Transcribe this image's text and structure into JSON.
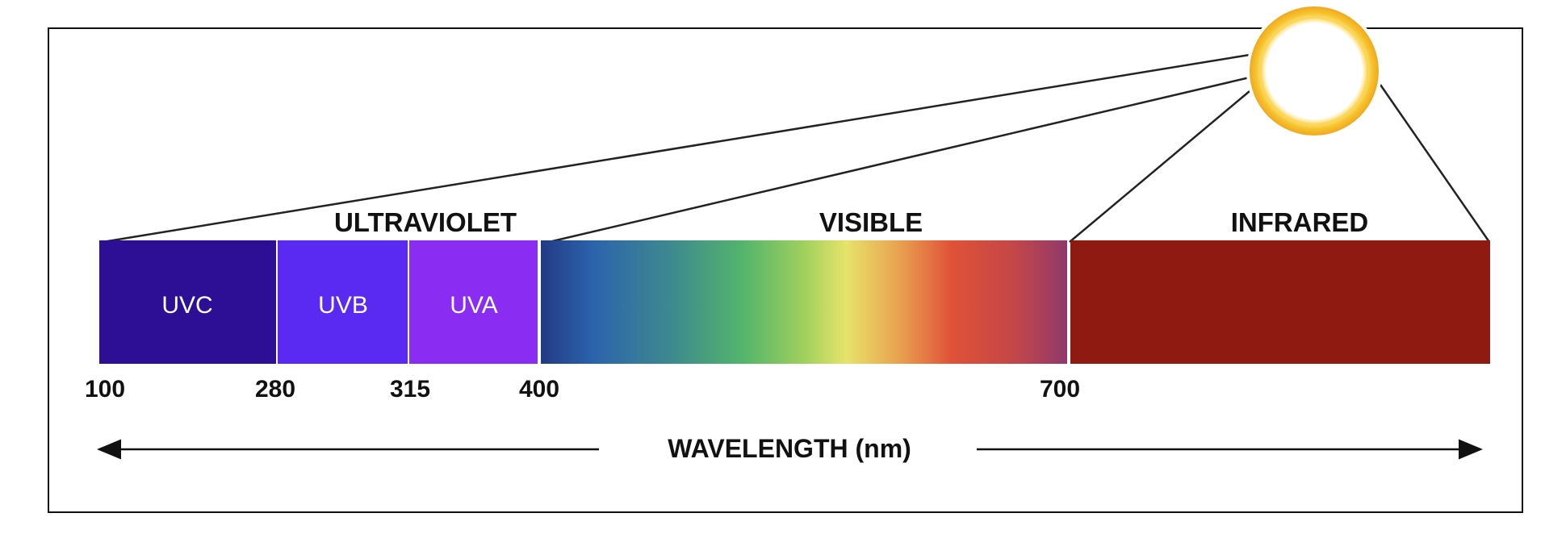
{
  "regions": {
    "ultraviolet": "ULTRAVIOLET",
    "visible": "VISIBLE",
    "infrared": "INFRARED"
  },
  "bands": {
    "uvc": {
      "label": "UVC",
      "color": "#2d0f96"
    },
    "uvb": {
      "label": "UVB",
      "color": "#5a2af2"
    },
    "uva": {
      "label": "UVA",
      "color": "#8a2cf2"
    },
    "visible": {
      "gradient": [
        "#243a84",
        "#2c63ad",
        "#3e8a8f",
        "#52b36d",
        "#9fd05e",
        "#e6e36a",
        "#e9a250",
        "#df5238",
        "#c34648",
        "#91396b"
      ]
    },
    "infrared": {
      "color": "#8e1a12"
    }
  },
  "ticks": {
    "t100": "100",
    "t280": "280",
    "t315": "315",
    "t400": "400",
    "t700": "700"
  },
  "axis": {
    "label": "WAVELENGTH (nm)"
  },
  "sun": {
    "icon": "sun-icon",
    "color": "#f5c32c"
  }
}
